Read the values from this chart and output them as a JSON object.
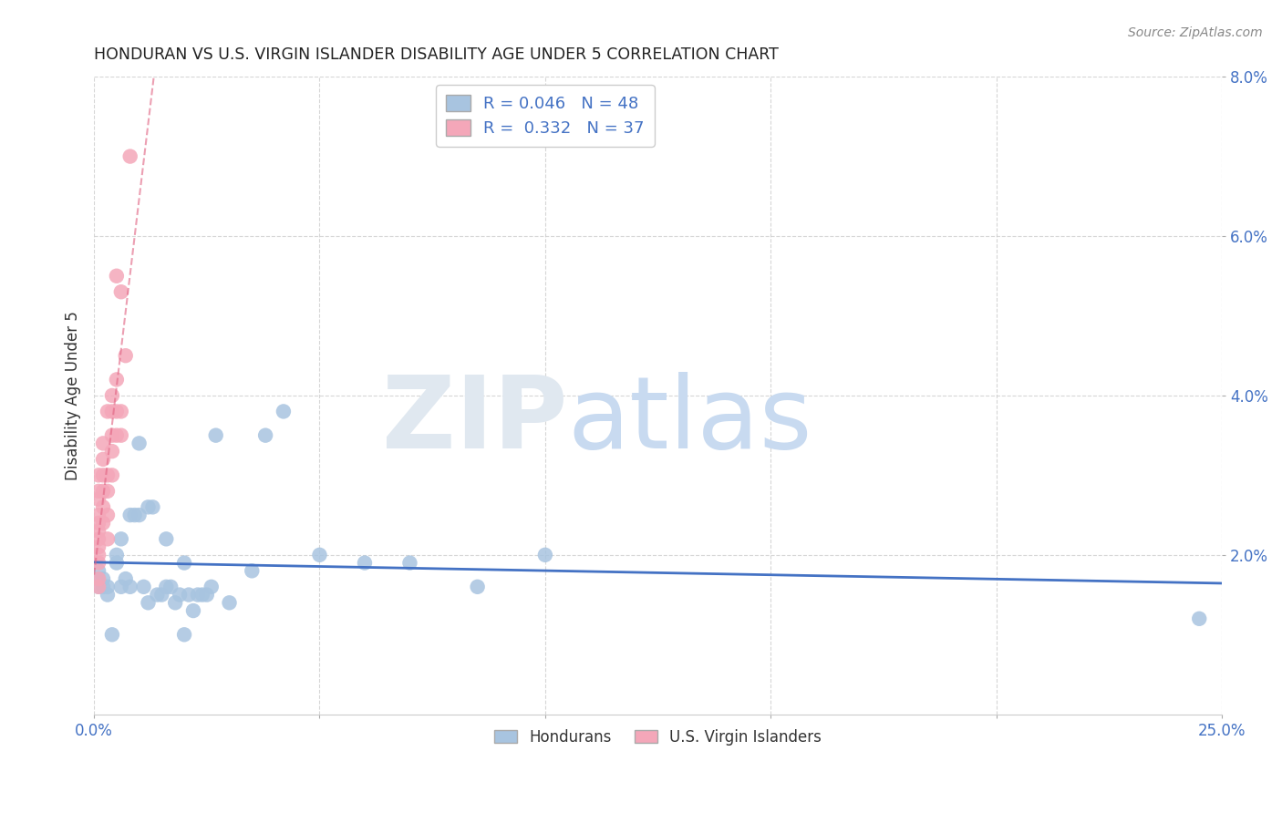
{
  "title": "HONDURAN VS U.S. VIRGIN ISLANDER DISABILITY AGE UNDER 5 CORRELATION CHART",
  "source": "Source: ZipAtlas.com",
  "ylabel": "Disability Age Under 5",
  "xlim": [
    0.0,
    0.25
  ],
  "ylim": [
    0.0,
    0.08
  ],
  "xticks_visible": [
    0.0,
    0.25
  ],
  "xticks_minor": [
    0.05,
    0.1,
    0.15,
    0.2
  ],
  "yticks": [
    0.02,
    0.04,
    0.06,
    0.08
  ],
  "hondurans_x": [
    0.001,
    0.001,
    0.001,
    0.002,
    0.002,
    0.003,
    0.003,
    0.004,
    0.005,
    0.005,
    0.006,
    0.006,
    0.007,
    0.008,
    0.008,
    0.009,
    0.01,
    0.01,
    0.011,
    0.012,
    0.012,
    0.013,
    0.014,
    0.015,
    0.016,
    0.016,
    0.017,
    0.018,
    0.019,
    0.02,
    0.02,
    0.021,
    0.022,
    0.023,
    0.024,
    0.025,
    0.026,
    0.027,
    0.03,
    0.035,
    0.038,
    0.042,
    0.05,
    0.06,
    0.07,
    0.085,
    0.1,
    0.245
  ],
  "hondurans_y": [
    0.018,
    0.016,
    0.017,
    0.016,
    0.017,
    0.015,
    0.016,
    0.01,
    0.019,
    0.02,
    0.016,
    0.022,
    0.017,
    0.016,
    0.025,
    0.025,
    0.025,
    0.034,
    0.016,
    0.014,
    0.026,
    0.026,
    0.015,
    0.015,
    0.016,
    0.022,
    0.016,
    0.014,
    0.015,
    0.019,
    0.01,
    0.015,
    0.013,
    0.015,
    0.015,
    0.015,
    0.016,
    0.035,
    0.014,
    0.018,
    0.035,
    0.038,
    0.02,
    0.019,
    0.019,
    0.016,
    0.02,
    0.012
  ],
  "virgin_islanders_x": [
    0.001,
    0.001,
    0.001,
    0.001,
    0.001,
    0.001,
    0.001,
    0.001,
    0.001,
    0.001,
    0.001,
    0.001,
    0.002,
    0.002,
    0.002,
    0.002,
    0.002,
    0.002,
    0.003,
    0.003,
    0.003,
    0.003,
    0.003,
    0.004,
    0.004,
    0.004,
    0.004,
    0.004,
    0.005,
    0.005,
    0.005,
    0.005,
    0.006,
    0.006,
    0.006,
    0.007,
    0.008
  ],
  "virgin_islanders_y": [
    0.016,
    0.017,
    0.019,
    0.02,
    0.021,
    0.022,
    0.023,
    0.024,
    0.025,
    0.027,
    0.028,
    0.03,
    0.024,
    0.026,
    0.028,
    0.03,
    0.032,
    0.034,
    0.022,
    0.025,
    0.028,
    0.03,
    0.038,
    0.03,
    0.033,
    0.035,
    0.038,
    0.04,
    0.035,
    0.038,
    0.042,
    0.055,
    0.035,
    0.038,
    0.053,
    0.045,
    0.07
  ],
  "hondurans_R": 0.046,
  "hondurans_N": 48,
  "virgin_islanders_R": 0.332,
  "virgin_islanders_N": 37,
  "hondurans_color": "#a8c4e0",
  "virgin_islanders_color": "#f4a7b9",
  "hondurans_line_color": "#4472c4",
  "virgin_islanders_line_color": "#e06080",
  "background_color": "#ffffff",
  "grid_color": "#cccccc"
}
